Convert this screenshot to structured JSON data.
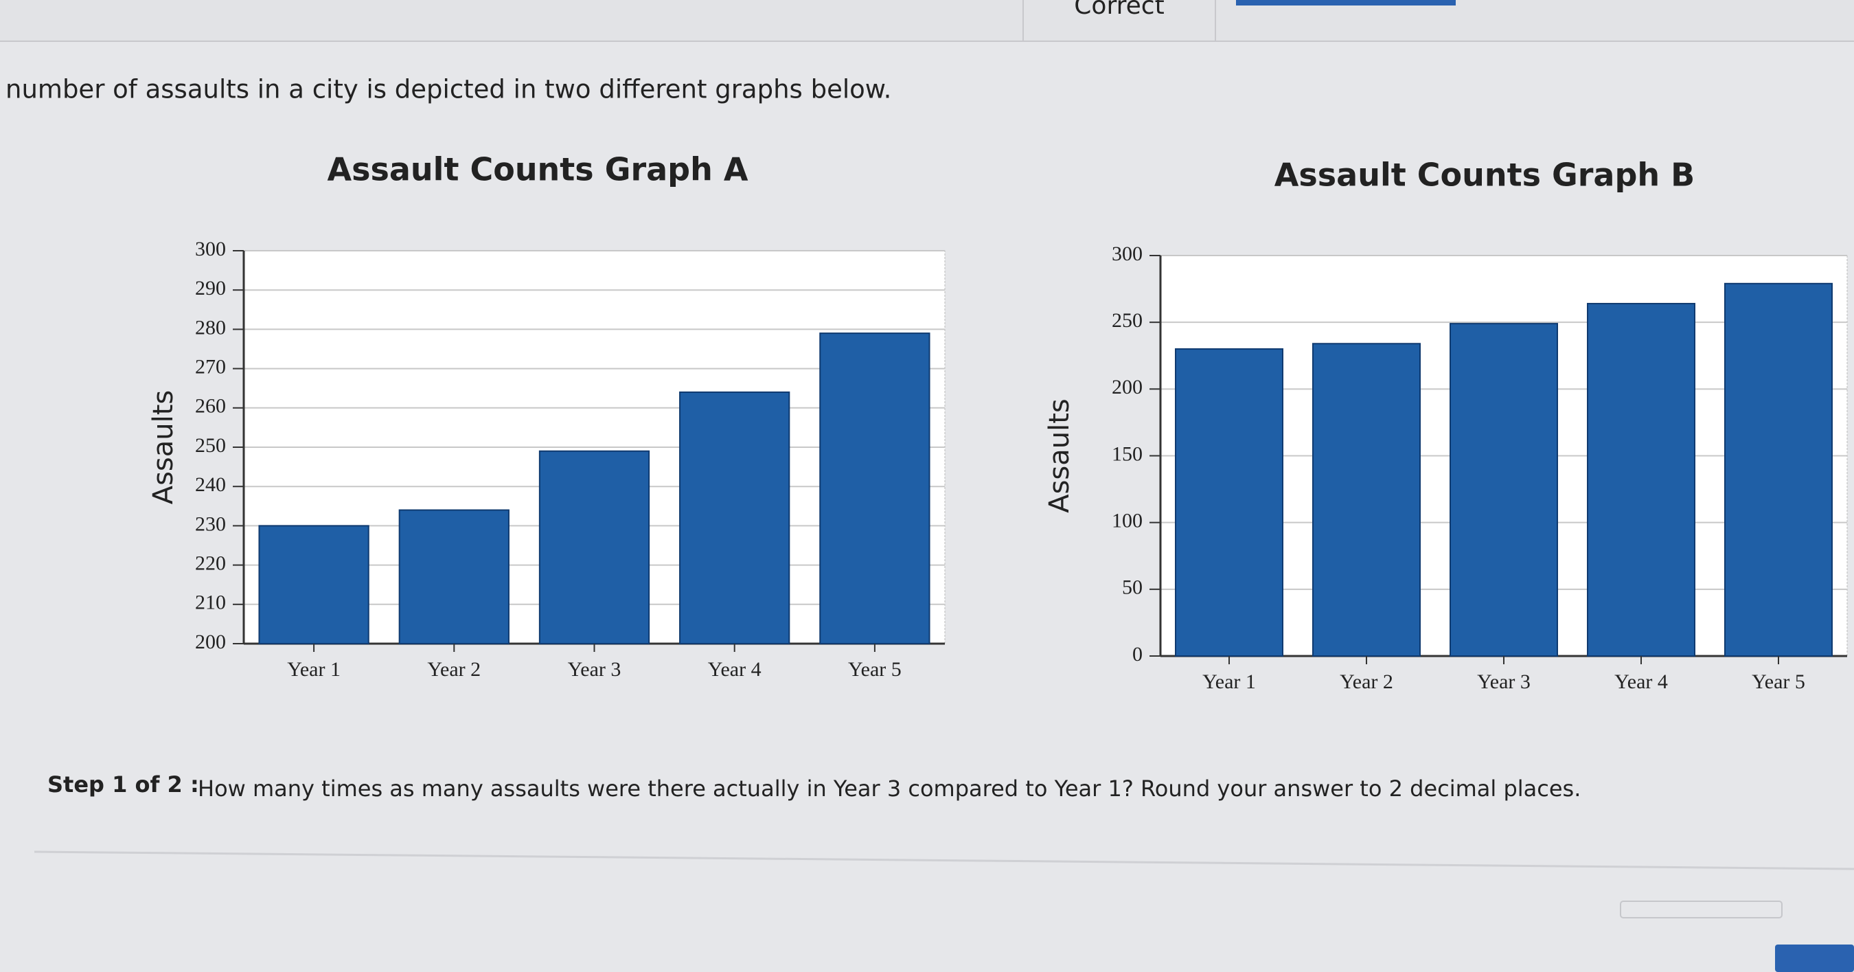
{
  "header": {
    "status": "Correct"
  },
  "intro": "number of assaults in a city is depicted in two different graphs below.",
  "chart_data": [
    {
      "type": "bar",
      "title": "Assault Counts Graph A",
      "y_label": "Assaults",
      "categories": [
        "Year 1",
        "Year 2",
        "Year 3",
        "Year 4",
        "Year 5"
      ],
      "values": [
        230,
        234,
        249,
        264,
        279
      ],
      "color": "#1f5fa6",
      "ylim": [
        200,
        300
      ],
      "yticks": [
        200,
        210,
        220,
        230,
        240,
        250,
        260,
        270,
        280,
        290,
        300
      ],
      "grid": true
    },
    {
      "type": "bar",
      "title": "Assault Counts Graph B",
      "y_label": "Assaults",
      "categories": [
        "Year 1",
        "Year 2",
        "Year 3",
        "Year 4",
        "Year 5"
      ],
      "values": [
        230,
        234,
        249,
        264,
        279
      ],
      "color": "#1f5fa6",
      "ylim": [
        0,
        300
      ],
      "yticks": [
        0,
        50,
        100,
        150,
        200,
        250,
        300
      ],
      "grid": true
    }
  ],
  "question": {
    "step": "Step 1 of 2 :",
    "text": "How many times as many assaults were there actually in Year 3 compared to Year 1? Round your answer to 2 decimal places."
  }
}
